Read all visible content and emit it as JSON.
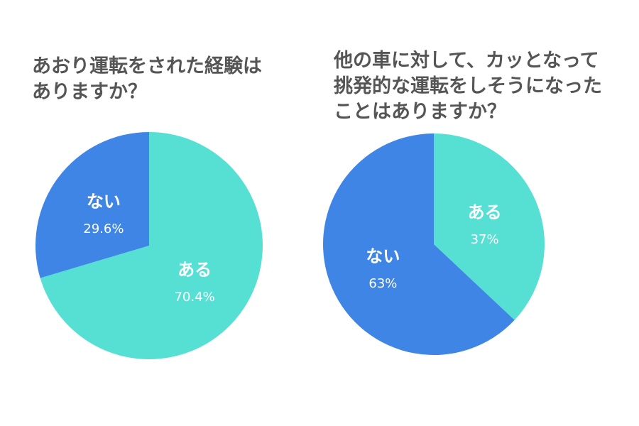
{
  "chart_data": [
    {
      "type": "pie",
      "title": "あおり運転をされた経験は\nありますか？",
      "categories": [
        "ある",
        "ない"
      ],
      "values": [
        70.4,
        29.6
      ],
      "value_labels": [
        "70.4%",
        "29.6%"
      ],
      "colors": [
        "#56E0D4",
        "#3E85E5"
      ]
    },
    {
      "type": "pie",
      "title": "他の車に対して、カッとなって\n挑発的な運転をしそうになった\nことはありますか？",
      "categories": [
        "ある",
        "ない"
      ],
      "values": [
        37,
        63
      ],
      "value_labels": [
        "37%",
        "63%"
      ],
      "colors": [
        "#56E0D4",
        "#3E85E5"
      ]
    }
  ]
}
